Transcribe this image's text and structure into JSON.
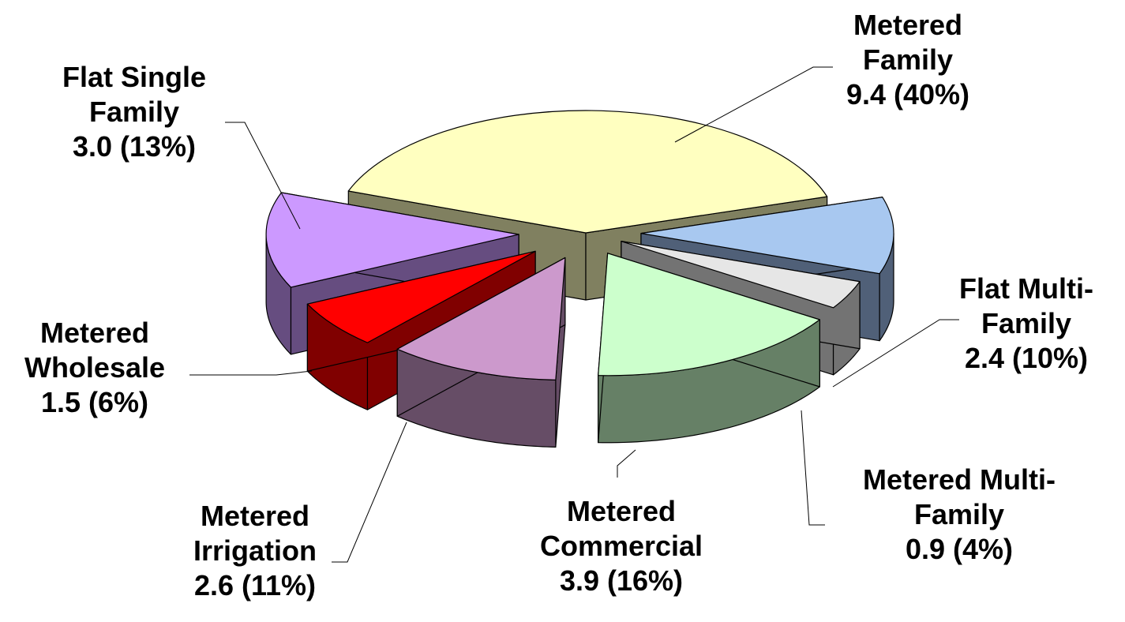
{
  "chart_data": {
    "type": "pie",
    "title": "",
    "slices": [
      {
        "name": [
          "Metered",
          "Family"
        ],
        "value": 9.4,
        "percent": "40%",
        "label_value": "9.4 (40%)",
        "top_color": "#ffffc0",
        "side_color": "#808060"
      },
      {
        "name": [
          "Flat Multi-",
          "Family"
        ],
        "value": 2.4,
        "percent": "10%",
        "label_value": "2.4 (10%)",
        "top_color": "#a8c8f0",
        "side_color": "#506078"
      },
      {
        "name": [
          "Metered Multi-",
          "Family"
        ],
        "value": 0.9,
        "percent": "4%",
        "label_value": "0.9 (4%)",
        "top_color": "#e6e6e6",
        "side_color": "#737373"
      },
      {
        "name": [
          "Metered",
          "Commercial"
        ],
        "value": 3.9,
        "percent": "16%",
        "label_value": "3.9 (16%)",
        "top_color": "#ccffcc",
        "side_color": "#668066"
      },
      {
        "name": [
          "Metered",
          "Irrigation"
        ],
        "value": 2.6,
        "percent": "11%",
        "label_value": "2.6 (11%)",
        "top_color": "#cc99cc",
        "side_color": "#664d66"
      },
      {
        "name": [
          "Metered",
          "Wholesale"
        ],
        "value": 1.5,
        "percent": "6%",
        "label_value": "1.5 (6%)",
        "top_color": "#ff0000",
        "side_color": "#800000"
      },
      {
        "name": [
          "Flat Single",
          "Family"
        ],
        "value": 3.0,
        "percent": "13%",
        "label_value": "3.0 (13%)",
        "top_color": "#cc99ff",
        "side_color": "#664d80"
      }
    ],
    "legend": "none",
    "style": "3d-exploded"
  }
}
